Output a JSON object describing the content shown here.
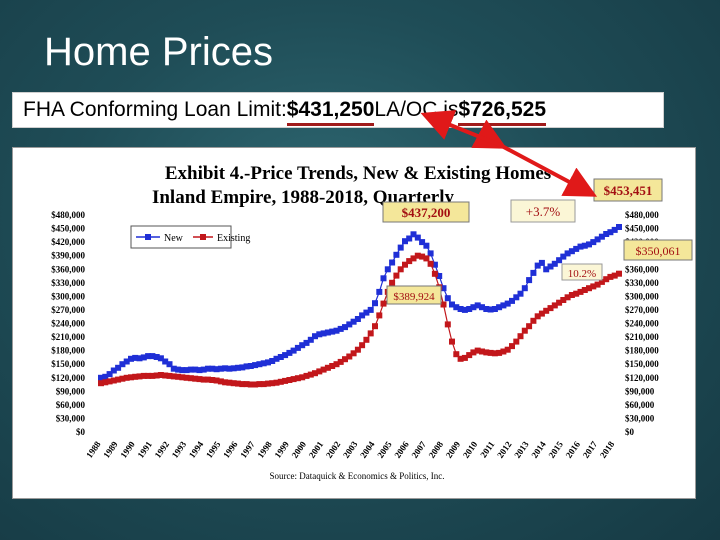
{
  "slide": {
    "title": "Home Prices",
    "banner": {
      "prefix": "FHA Conforming Loan Limit: ",
      "limit_ie": "$431,250",
      "middle": " LA/OC is ",
      "limit_laoc": "$726,525"
    },
    "arrow_color": "#e01919",
    "underline_color": "#a11b1b"
  },
  "chart_data": {
    "type": "line",
    "title": "Exhibit 4.-Price Trends, New & Existing  Homes",
    "subtitle": "Inland Empire, 1988-2018, Quarterly",
    "source": "Source: Dataquick & Economics & Politics, Inc.",
    "ylim": [
      0,
      480000
    ],
    "yticks": [
      "$480,000",
      "$450,000",
      "$420,000",
      "$390,000",
      "$360,000",
      "$330,000",
      "$300,000",
      "$270,000",
      "$240,000",
      "$210,000",
      "$180,000",
      "$150,000",
      "$120,000",
      "$90,000",
      "$60,000",
      "$30,000",
      "$0"
    ],
    "x": [
      "1988",
      "1989",
      "1990",
      "1991",
      "1992",
      "1993",
      "1994",
      "1995",
      "1996",
      "1997",
      "1998",
      "1999",
      "2000",
      "2001",
      "2002",
      "2003",
      "2004",
      "2005",
      "2006",
      "2007",
      "2008",
      "2009",
      "2010",
      "2011",
      "2012",
      "2013",
      "2014",
      "2015",
      "2016",
      "2017",
      "2018"
    ],
    "legend": [
      "New",
      "Existing"
    ],
    "legend_position": "top-left",
    "grid": false,
    "series": [
      {
        "name": "New",
        "color": "#1f2fd6",
        "values": [
          [
            1988.0,
            120000
          ],
          [
            1988.25,
            122000
          ],
          [
            1988.5,
            128000
          ],
          [
            1988.75,
            136000
          ],
          [
            1989.0,
            142000
          ],
          [
            1989.25,
            150000
          ],
          [
            1989.5,
            156000
          ],
          [
            1989.75,
            162000
          ],
          [
            1990.0,
            164000
          ],
          [
            1990.25,
            163000
          ],
          [
            1990.5,
            165000
          ],
          [
            1990.75,
            168000
          ],
          [
            1991.0,
            168000
          ],
          [
            1991.25,
            166000
          ],
          [
            1991.5,
            163000
          ],
          [
            1991.75,
            156000
          ],
          [
            1992.0,
            150000
          ],
          [
            1992.25,
            140000
          ],
          [
            1992.5,
            138000
          ],
          [
            1992.75,
            137000
          ],
          [
            1993.0,
            137000
          ],
          [
            1993.25,
            138000
          ],
          [
            1993.5,
            138000
          ],
          [
            1993.75,
            137000
          ],
          [
            1994.0,
            138000
          ],
          [
            1994.25,
            140000
          ],
          [
            1994.5,
            140000
          ],
          [
            1994.75,
            139000
          ],
          [
            1995.0,
            140000
          ],
          [
            1995.25,
            141000
          ],
          [
            1995.5,
            140000
          ],
          [
            1995.75,
            141000
          ],
          [
            1996.0,
            142000
          ],
          [
            1996.25,
            143000
          ],
          [
            1996.5,
            145000
          ],
          [
            1996.75,
            146000
          ],
          [
            1997.0,
            148000
          ],
          [
            1997.25,
            150000
          ],
          [
            1997.5,
            152000
          ],
          [
            1997.75,
            154000
          ],
          [
            1998.0,
            157000
          ],
          [
            1998.25,
            162000
          ],
          [
            1998.5,
            166000
          ],
          [
            1998.75,
            170000
          ],
          [
            1999.0,
            175000
          ],
          [
            1999.25,
            180000
          ],
          [
            1999.5,
            186000
          ],
          [
            1999.75,
            192000
          ],
          [
            2000.0,
            197000
          ],
          [
            2000.25,
            204000
          ],
          [
            2000.5,
            212000
          ],
          [
            2000.75,
            216000
          ],
          [
            2001.0,
            218000
          ],
          [
            2001.25,
            220000
          ],
          [
            2001.5,
            222000
          ],
          [
            2001.75,
            224000
          ],
          [
            2002.0,
            228000
          ],
          [
            2002.25,
            232000
          ],
          [
            2002.5,
            238000
          ],
          [
            2002.75,
            244000
          ],
          [
            2003.0,
            250000
          ],
          [
            2003.25,
            258000
          ],
          [
            2003.5,
            264000
          ],
          [
            2003.75,
            270000
          ],
          [
            2004.0,
            285000
          ],
          [
            2004.25,
            310000
          ],
          [
            2004.5,
            340000
          ],
          [
            2004.75,
            360000
          ],
          [
            2005.0,
            375000
          ],
          [
            2005.25,
            392000
          ],
          [
            2005.5,
            408000
          ],
          [
            2005.75,
            422000
          ],
          [
            2006.0,
            428000
          ],
          [
            2006.25,
            437200
          ],
          [
            2006.5,
            430000
          ],
          [
            2006.75,
            420000
          ],
          [
            2007.0,
            412000
          ],
          [
            2007.25,
            395000
          ],
          [
            2007.5,
            370000
          ],
          [
            2007.75,
            345000
          ],
          [
            2008.0,
            318000
          ],
          [
            2008.25,
            296000
          ],
          [
            2008.5,
            282000
          ],
          [
            2008.75,
            276000
          ],
          [
            2009.0,
            272000
          ],
          [
            2009.25,
            270000
          ],
          [
            2009.5,
            272000
          ],
          [
            2009.75,
            276000
          ],
          [
            2010.0,
            280000
          ],
          [
            2010.25,
            276000
          ],
          [
            2010.5,
            272000
          ],
          [
            2010.75,
            271000
          ],
          [
            2011.0,
            272000
          ],
          [
            2011.25,
            276000
          ],
          [
            2011.5,
            280000
          ],
          [
            2011.75,
            284000
          ],
          [
            2012.0,
            290000
          ],
          [
            2012.25,
            298000
          ],
          [
            2012.5,
            306000
          ],
          [
            2012.75,
            318000
          ],
          [
            2013.0,
            336000
          ],
          [
            2013.25,
            352000
          ],
          [
            2013.5,
            368000
          ],
          [
            2013.75,
            374000
          ],
          [
            2014.0,
            360000
          ],
          [
            2014.25,
            366000
          ],
          [
            2014.5,
            372000
          ],
          [
            2014.75,
            380000
          ],
          [
            2015.0,
            388000
          ],
          [
            2015.25,
            395000
          ],
          [
            2015.5,
            400000
          ],
          [
            2015.75,
            405000
          ],
          [
            2016.0,
            410000
          ],
          [
            2016.25,
            412000
          ],
          [
            2016.5,
            415000
          ],
          [
            2016.75,
            420000
          ],
          [
            2017.0,
            426000
          ],
          [
            2017.25,
            432000
          ],
          [
            2017.5,
            438000
          ],
          [
            2017.75,
            442000
          ],
          [
            2018.0,
            447000
          ],
          [
            2018.25,
            453451
          ]
        ]
      },
      {
        "name": "Existing",
        "color": "#c2171b",
        "values": [
          [
            1988.0,
            108000
          ],
          [
            1988.25,
            110000
          ],
          [
            1988.5,
            112000
          ],
          [
            1988.75,
            114000
          ],
          [
            1989.0,
            116000
          ],
          [
            1989.25,
            118000
          ],
          [
            1989.5,
            120000
          ],
          [
            1989.75,
            121000
          ],
          [
            1990.0,
            122000
          ],
          [
            1990.25,
            123000
          ],
          [
            1990.5,
            124000
          ],
          [
            1990.75,
            124000
          ],
          [
            1991.0,
            124000
          ],
          [
            1991.25,
            125000
          ],
          [
            1991.5,
            126000
          ],
          [
            1991.75,
            125000
          ],
          [
            1992.0,
            124000
          ],
          [
            1992.25,
            123000
          ],
          [
            1992.5,
            122000
          ],
          [
            1992.75,
            121000
          ],
          [
            1993.0,
            120000
          ],
          [
            1993.25,
            119000
          ],
          [
            1993.5,
            118000
          ],
          [
            1993.75,
            117000
          ],
          [
            1994.0,
            116000
          ],
          [
            1994.25,
            116000
          ],
          [
            1994.5,
            115000
          ],
          [
            1994.75,
            114000
          ],
          [
            1995.0,
            112000
          ],
          [
            1995.25,
            110000
          ],
          [
            1995.5,
            109000
          ],
          [
            1995.75,
            108000
          ],
          [
            1996.0,
            107000
          ],
          [
            1996.25,
            106000
          ],
          [
            1996.5,
            106000
          ],
          [
            1996.75,
            105000
          ],
          [
            1997.0,
            105000
          ],
          [
            1997.25,
            106000
          ],
          [
            1997.5,
            106000
          ],
          [
            1997.75,
            107000
          ],
          [
            1998.0,
            108000
          ],
          [
            1998.25,
            109000
          ],
          [
            1998.5,
            111000
          ],
          [
            1998.75,
            113000
          ],
          [
            1999.0,
            115000
          ],
          [
            1999.25,
            117000
          ],
          [
            1999.5,
            119000
          ],
          [
            1999.75,
            121000
          ],
          [
            2000.0,
            124000
          ],
          [
            2000.25,
            127000
          ],
          [
            2000.5,
            130000
          ],
          [
            2000.75,
            134000
          ],
          [
            2001.0,
            138000
          ],
          [
            2001.25,
            142000
          ],
          [
            2001.5,
            146000
          ],
          [
            2001.75,
            150000
          ],
          [
            2002.0,
            155000
          ],
          [
            2002.25,
            161000
          ],
          [
            2002.5,
            167000
          ],
          [
            2002.75,
            174000
          ],
          [
            2003.0,
            182000
          ],
          [
            2003.25,
            192000
          ],
          [
            2003.5,
            204000
          ],
          [
            2003.75,
            218000
          ],
          [
            2004.0,
            234000
          ],
          [
            2004.25,
            258000
          ],
          [
            2004.5,
            284000
          ],
          [
            2004.75,
            310000
          ],
          [
            2005.0,
            330000
          ],
          [
            2005.25,
            346000
          ],
          [
            2005.5,
            360000
          ],
          [
            2005.75,
            370000
          ],
          [
            2006.0,
            378000
          ],
          [
            2006.25,
            384000
          ],
          [
            2006.5,
            389924
          ],
          [
            2006.75,
            388000
          ],
          [
            2007.0,
            384000
          ],
          [
            2007.25,
            372000
          ],
          [
            2007.5,
            350000
          ],
          [
            2007.75,
            320000
          ],
          [
            2008.0,
            282000
          ],
          [
            2008.25,
            238000
          ],
          [
            2008.5,
            200000
          ],
          [
            2008.75,
            172000
          ],
          [
            2009.0,
            162000
          ],
          [
            2009.25,
            164000
          ],
          [
            2009.5,
            170000
          ],
          [
            2009.75,
            176000
          ],
          [
            2010.0,
            180000
          ],
          [
            2010.25,
            178000
          ],
          [
            2010.5,
            176000
          ],
          [
            2010.75,
            175000
          ],
          [
            2011.0,
            174000
          ],
          [
            2011.25,
            175000
          ],
          [
            2011.5,
            178000
          ],
          [
            2011.75,
            182000
          ],
          [
            2012.0,
            190000
          ],
          [
            2012.25,
            200000
          ],
          [
            2012.5,
            212000
          ],
          [
            2012.75,
            224000
          ],
          [
            2013.0,
            234000
          ],
          [
            2013.25,
            246000
          ],
          [
            2013.5,
            256000
          ],
          [
            2013.75,
            262000
          ],
          [
            2014.0,
            268000
          ],
          [
            2014.25,
            274000
          ],
          [
            2014.5,
            280000
          ],
          [
            2014.75,
            286000
          ],
          [
            2015.0,
            292000
          ],
          [
            2015.25,
            298000
          ],
          [
            2015.5,
            303000
          ],
          [
            2015.75,
            306000
          ],
          [
            2016.0,
            310000
          ],
          [
            2016.25,
            314000
          ],
          [
            2016.5,
            318000
          ],
          [
            2016.75,
            322000
          ],
          [
            2017.0,
            326000
          ],
          [
            2017.25,
            332000
          ],
          [
            2017.5,
            338000
          ],
          [
            2017.75,
            343000
          ],
          [
            2018.0,
            346000
          ],
          [
            2018.25,
            350061
          ]
        ]
      }
    ],
    "annotations": [
      {
        "text": "$437,200",
        "x": 2006.25,
        "y": 437200,
        "series": "New"
      },
      {
        "text": "$389,924",
        "x": 2006.5,
        "y": 389924,
        "series": "Existing"
      },
      {
        "text": "$453,451",
        "x": 2018.25,
        "y": 453451,
        "series": "New"
      },
      {
        "text": "$350,061",
        "x": 2018.25,
        "y": 350061,
        "series": "Existing"
      },
      {
        "text": "+3.7%",
        "series": "New"
      },
      {
        "text": "10.2%",
        "series": "Existing"
      }
    ]
  }
}
